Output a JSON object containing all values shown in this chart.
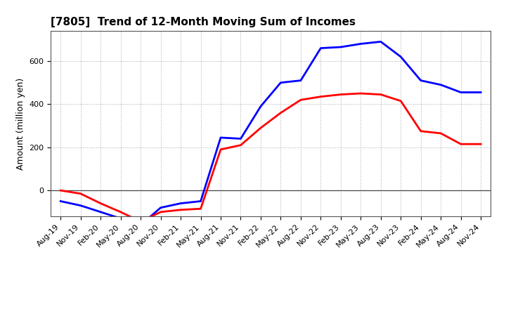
{
  "title": "[7805]  Trend of 12-Month Moving Sum of Incomes",
  "ylabel": "Amount (million yen)",
  "x_labels": [
    "Aug-19",
    "Nov-19",
    "Feb-20",
    "May-20",
    "Aug-20",
    "Nov-20",
    "Feb-21",
    "May-21",
    "Aug-21",
    "Nov-21",
    "Feb-22",
    "May-22",
    "Aug-22",
    "Nov-22",
    "Feb-23",
    "May-23",
    "Aug-23",
    "Nov-23",
    "Feb-24",
    "May-24",
    "Aug-24",
    "Nov-24"
  ],
  "ordinary_income": [
    -50,
    -70,
    -100,
    -130,
    -160,
    -80,
    -60,
    -50,
    245,
    240,
    390,
    500,
    510,
    660,
    665,
    680,
    690,
    620,
    510,
    490,
    455,
    455
  ],
  "net_income": [
    0,
    -15,
    -60,
    -100,
    -145,
    -100,
    -90,
    -85,
    190,
    210,
    290,
    360,
    420,
    435,
    445,
    450,
    445,
    415,
    275,
    265,
    215,
    215
  ],
  "ordinary_color": "#0000ff",
  "net_color": "#ff0000",
  "background_color": "#ffffff",
  "grid_color": "#aaaaaa",
  "ylim": [
    -120,
    740
  ],
  "yticks": [
    0,
    200,
    400,
    600
  ],
  "line_width": 2.0,
  "title_fontsize": 11,
  "axis_fontsize": 8,
  "ylabel_fontsize": 9,
  "legend_fontsize": 9
}
